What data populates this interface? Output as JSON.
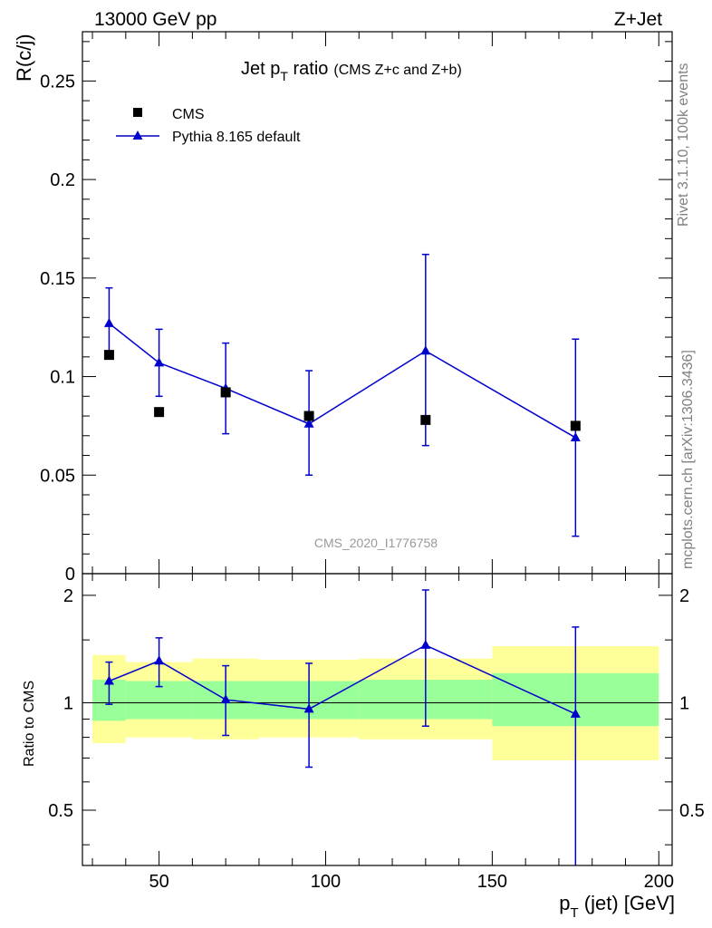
{
  "header": {
    "energy_label": "13000 GeV pp",
    "process_label": "Z+Jet"
  },
  "side_labels": {
    "rivet": "Rivet 3.1.10,  100k events",
    "source": "mcplots.cern.ch [arXiv:1306.3436]"
  },
  "colors": {
    "mc_line": "#0000cc",
    "data_marker": "#000000",
    "band_inner": "#99ff99",
    "band_outer": "#ffff99"
  },
  "chart_data": [
    {
      "type": "scatter",
      "title_main": "Jet p",
      "title_sub": "T",
      "title_rest": " ratio",
      "title_small": "(CMS  Z+c and Z+b)",
      "ylabel": "R(c/j)",
      "watermark": "CMS_2020_I1776758",
      "xlim": [
        27,
        204
      ],
      "ylim": [
        0,
        0.275
      ],
      "y_ticks": [
        0,
        0.05,
        0.1,
        0.15,
        0.2,
        0.25
      ],
      "y_tick_labels": [
        "0",
        "0.05",
        "0.1",
        "0.15",
        "0.2",
        "0.25"
      ],
      "legend": {
        "position": "top-left",
        "entries": [
          "CMS",
          "Pythia 8.165 default"
        ]
      },
      "series": [
        {
          "name": "CMS",
          "style": "marker-square",
          "x": [
            35,
            50,
            70,
            95,
            130,
            175
          ],
          "y": [
            0.111,
            0.082,
            0.092,
            0.08,
            0.078,
            0.075
          ]
        },
        {
          "name": "Pythia 8.165 default",
          "style": "line-triangle",
          "x": [
            35,
            50,
            70,
            95,
            130,
            175
          ],
          "y": [
            0.127,
            0.107,
            0.094,
            0.076,
            0.113,
            0.069
          ],
          "err_low": [
            0.109,
            0.09,
            0.071,
            0.05,
            0.065,
            0.019
          ],
          "err_high": [
            0.145,
            0.124,
            0.117,
            0.103,
            0.162,
            0.119
          ]
        }
      ]
    },
    {
      "type": "scatter",
      "ylabel": "Ratio to CMS",
      "xlabel_main": "p",
      "xlabel_sub": "T",
      "xlabel_rest": " (jet) [GeV]",
      "xlim": [
        27,
        204
      ],
      "ylim": [
        0.35,
        2.3
      ],
      "log_y": true,
      "x_ticks": [
        50,
        100,
        150,
        200
      ],
      "x_tick_labels": [
        "50",
        "100",
        "150",
        "200"
      ],
      "y_ticks": [
        0.5,
        1,
        2
      ],
      "y_tick_labels": [
        "0.5",
        "1",
        "2"
      ],
      "bands": {
        "x_edges": [
          30,
          40,
          60,
          80,
          110,
          150,
          200
        ],
        "inner_low": [
          0.89,
          0.9,
          0.9,
          0.9,
          0.9,
          0.86
        ],
        "inner_high": [
          1.16,
          1.15,
          1.15,
          1.15,
          1.16,
          1.21
        ],
        "outer_low": [
          0.77,
          0.8,
          0.79,
          0.8,
          0.79,
          0.69
        ],
        "outer_high": [
          1.36,
          1.3,
          1.33,
          1.32,
          1.33,
          1.44
        ]
      },
      "series": [
        {
          "name": "Pythia 8.165 default",
          "style": "line-triangle",
          "x": [
            35,
            50,
            70,
            95,
            130,
            175
          ],
          "y": [
            1.15,
            1.31,
            1.02,
            0.96,
            1.45,
            0.93
          ],
          "err_low": [
            0.99,
            1.11,
            0.81,
            0.66,
            0.86,
            0.33
          ],
          "err_high": [
            1.3,
            1.52,
            1.27,
            1.29,
            2.07,
            1.63
          ]
        }
      ]
    }
  ]
}
